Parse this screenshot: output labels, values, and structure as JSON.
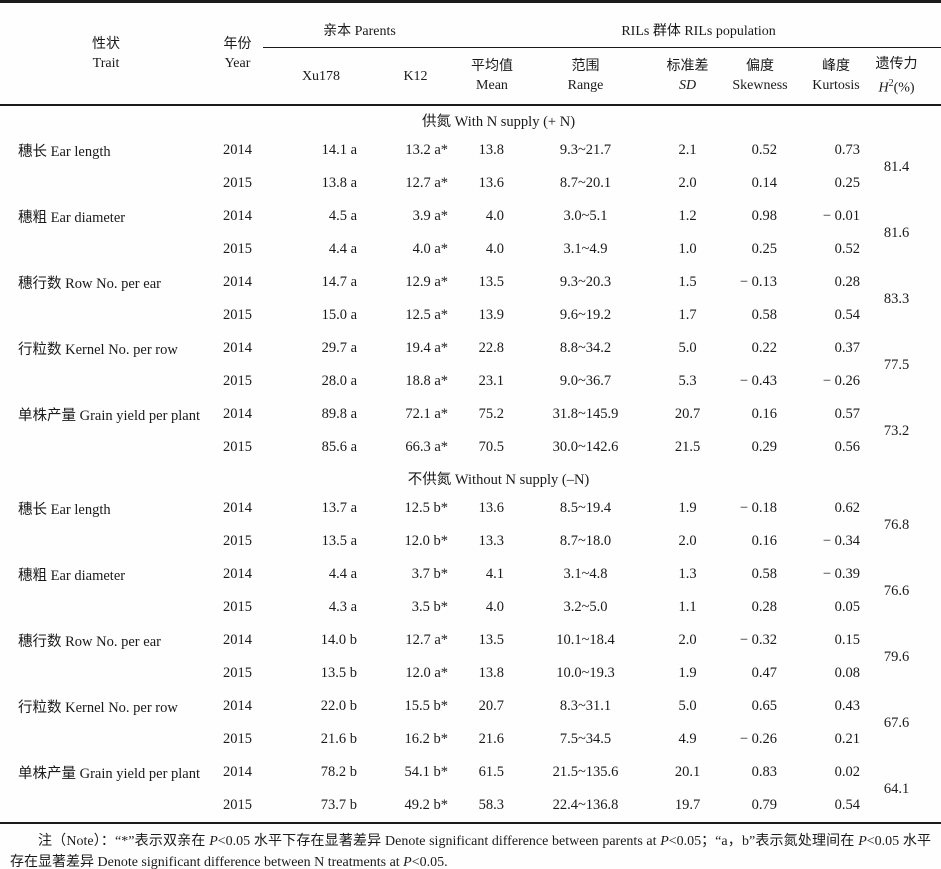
{
  "page": {
    "background": "#fefefe",
    "text_color": "#1a1a1a",
    "rule_color": "#1b1b1b"
  },
  "table": {
    "header": {
      "trait_zh": "性状",
      "trait_en": "Trait",
      "year_zh": "年份",
      "year_en": "Year",
      "parents_label": "亲本 Parents",
      "xu178": "Xu178",
      "k12": "K12",
      "rils_label": "RILs 群体 RILs population",
      "mean_zh": "平均值",
      "mean_en": "Mean",
      "range_zh": "范围",
      "range_en": "Range",
      "sd_zh": "标准差",
      "sd_en": "SD",
      "skew_zh": "偏度",
      "skew_en": "Skewness",
      "kurt_zh": "峰度",
      "kurt_en": "Kurtosis",
      "herit_zh": "遗传力",
      "herit_h": "H",
      "herit_sup": "2",
      "herit_rest": "(%)"
    },
    "sections": [
      {
        "title": "供氮 With N supply (+ N)",
        "traits": [
          {
            "name": "穗长 Ear length",
            "h2": "81.4",
            "rows": [
              {
                "year": "2014",
                "xu178": "14.1 a",
                "k12": "13.2 a*",
                "mean": "13.8",
                "range": "9.3~21.7",
                "sd": "2.1",
                "skewness": "0.52",
                "kurtosis": "0.73"
              },
              {
                "year": "2015",
                "xu178": "13.8 a",
                "k12": "12.7 a*",
                "mean": "13.6",
                "range": "8.7~20.1",
                "sd": "2.0",
                "skewness": "0.14",
                "kurtosis": "0.25"
              }
            ]
          },
          {
            "name": "穗粗 Ear diameter",
            "h2": "81.6",
            "rows": [
              {
                "year": "2014",
                "xu178": "4.5 a",
                "k12": "3.9 a*",
                "mean": "4.0",
                "range": "3.0~5.1",
                "sd": "1.2",
                "skewness": "0.98",
                "kurtosis": "− 0.01"
              },
              {
                "year": "2015",
                "xu178": "4.4 a",
                "k12": "4.0 a*",
                "mean": "4.0",
                "range": "3.1~4.9",
                "sd": "1.0",
                "skewness": "0.25",
                "kurtosis": "0.52"
              }
            ]
          },
          {
            "name": "穗行数 Row No. per ear",
            "h2": "83.3",
            "rows": [
              {
                "year": "2014",
                "xu178": "14.7 a",
                "k12": "12.9 a*",
                "mean": "13.5",
                "range": "9.3~20.3",
                "sd": "1.5",
                "skewness": "− 0.13",
                "kurtosis": "0.28"
              },
              {
                "year": "2015",
                "xu178": "15.0 a",
                "k12": "12.5 a*",
                "mean": "13.9",
                "range": "9.6~19.2",
                "sd": "1.7",
                "skewness": "0.58",
                "kurtosis": "0.54"
              }
            ]
          },
          {
            "name": "行粒数 Kernel No. per row",
            "h2": "77.5",
            "rows": [
              {
                "year": "2014",
                "xu178": "29.7 a",
                "k12": "19.4 a*",
                "mean": "22.8",
                "range": "8.8~34.2",
                "sd": "5.0",
                "skewness": "0.22",
                "kurtosis": "0.37"
              },
              {
                "year": "2015",
                "xu178": "28.0 a",
                "k12": "18.8 a*",
                "mean": "23.1",
                "range": "9.0~36.7",
                "sd": "5.3",
                "skewness": "− 0.43",
                "kurtosis": "− 0.26"
              }
            ]
          },
          {
            "name": "单株产量 Grain yield per plant",
            "h2": "73.2",
            "rows": [
              {
                "year": "2014",
                "xu178": "89.8 a",
                "k12": "72.1 a*",
                "mean": "75.2",
                "range": "31.8~145.9",
                "sd": "20.7",
                "skewness": "0.16",
                "kurtosis": "0.57"
              },
              {
                "year": "2015",
                "xu178": "85.6 a",
                "k12": "66.3 a*",
                "mean": "70.5",
                "range": "30.0~142.6",
                "sd": "21.5",
                "skewness": "0.29",
                "kurtosis": "0.56"
              }
            ]
          }
        ]
      },
      {
        "title": "不供氮 Without N supply (–N)",
        "traits": [
          {
            "name": "穗长 Ear length",
            "h2": "76.8",
            "rows": [
              {
                "year": "2014",
                "xu178": "13.7 a",
                "k12": "12.5 b*",
                "mean": "13.6",
                "range": "8.5~19.4",
                "sd": "1.9",
                "skewness": "− 0.18",
                "kurtosis": "0.62"
              },
              {
                "year": "2015",
                "xu178": "13.5 a",
                "k12": "12.0 b*",
                "mean": "13.3",
                "range": "8.7~18.0",
                "sd": "2.0",
                "skewness": "0.16",
                "kurtosis": "− 0.34"
              }
            ]
          },
          {
            "name": "穗粗 Ear diameter",
            "h2": "76.6",
            "rows": [
              {
                "year": "2014",
                "xu178": "4.4 a",
                "k12": "3.7 b*",
                "mean": "4.1",
                "range": "3.1~4.8",
                "sd": "1.3",
                "skewness": "0.58",
                "kurtosis": "− 0.39"
              },
              {
                "year": "2015",
                "xu178": "4.3 a",
                "k12": "3.5 b*",
                "mean": "4.0",
                "range": "3.2~5.0",
                "sd": "1.1",
                "skewness": "0.28",
                "kurtosis": "0.05"
              }
            ]
          },
          {
            "name": "穗行数 Row No. per ear",
            "h2": "79.6",
            "rows": [
              {
                "year": "2014",
                "xu178": "14.0 b",
                "k12": "12.7 a*",
                "mean": "13.5",
                "range": "10.1~18.4",
                "sd": "2.0",
                "skewness": "− 0.32",
                "kurtosis": "0.15"
              },
              {
                "year": "2015",
                "xu178": "13.5 b",
                "k12": "12.0 a*",
                "mean": "13.8",
                "range": "10.0~19.3",
                "sd": "1.9",
                "skewness": "0.47",
                "kurtosis": "0.08"
              }
            ]
          },
          {
            "name": "行粒数 Kernel No. per row",
            "h2": "67.6",
            "rows": [
              {
                "year": "2014",
                "xu178": "22.0 b",
                "k12": "15.5 b*",
                "mean": "20.7",
                "range": "8.3~31.1",
                "sd": "5.0",
                "skewness": "0.65",
                "kurtosis": "0.43"
              },
              {
                "year": "2015",
                "xu178": "21.6 b",
                "k12": "16.2 b*",
                "mean": "21.6",
                "range": "7.5~34.5",
                "sd": "4.9",
                "skewness": "− 0.26",
                "kurtosis": "0.21"
              }
            ]
          },
          {
            "name": "单株产量 Grain yield per plant",
            "h2": "64.1",
            "rows": [
              {
                "year": "2014",
                "xu178": "78.2 b",
                "k12": "54.1 b*",
                "mean": "61.5",
                "range": "21.5~135.6",
                "sd": "20.1",
                "skewness": "0.83",
                "kurtosis": "0.02"
              },
              {
                "year": "2015",
                "xu178": "73.7 b",
                "k12": "49.2 b*",
                "mean": "58.3",
                "range": "22.4~136.8",
                "sd": "19.7",
                "skewness": "0.79",
                "kurtosis": "0.54"
              }
            ]
          }
        ]
      }
    ]
  },
  "footnote": {
    "segments": [
      {
        "text": "注（Note）：“*”表示双亲在 ",
        "italic": false
      },
      {
        "text": "P",
        "italic": true
      },
      {
        "text": "<0.05 水平下存在显著差异 Denote significant difference between parents at ",
        "italic": false
      },
      {
        "text": "P",
        "italic": true
      },
      {
        "text": "<0.05；“a，b”表示氮处理间在 ",
        "italic": false
      },
      {
        "text": "P",
        "italic": true
      },
      {
        "text": "<0.05 水平存在显著差异 Denote significant difference between N treatments at ",
        "italic": false
      },
      {
        "text": "P",
        "italic": true
      },
      {
        "text": "<0.05.",
        "italic": false
      }
    ]
  }
}
